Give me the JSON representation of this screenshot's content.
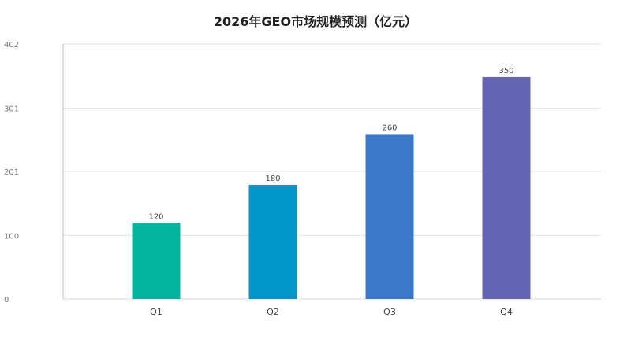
{
  "chart_data": {
    "type": "bar",
    "title": "2026年GEO市场规模预测（亿元）",
    "categories": [
      "Q1",
      "Q2",
      "Q3",
      "Q4"
    ],
    "values": [
      120,
      180,
      260,
      350
    ],
    "bar_colors": [
      "#00b4a0",
      "#0096c8",
      "#3c78c8",
      "#6464b4"
    ],
    "ylim": [
      0,
      402
    ],
    "yticks": [
      0,
      100,
      201,
      301,
      402
    ],
    "xlabel": "",
    "ylabel": "",
    "grid": true,
    "legend": "none"
  }
}
